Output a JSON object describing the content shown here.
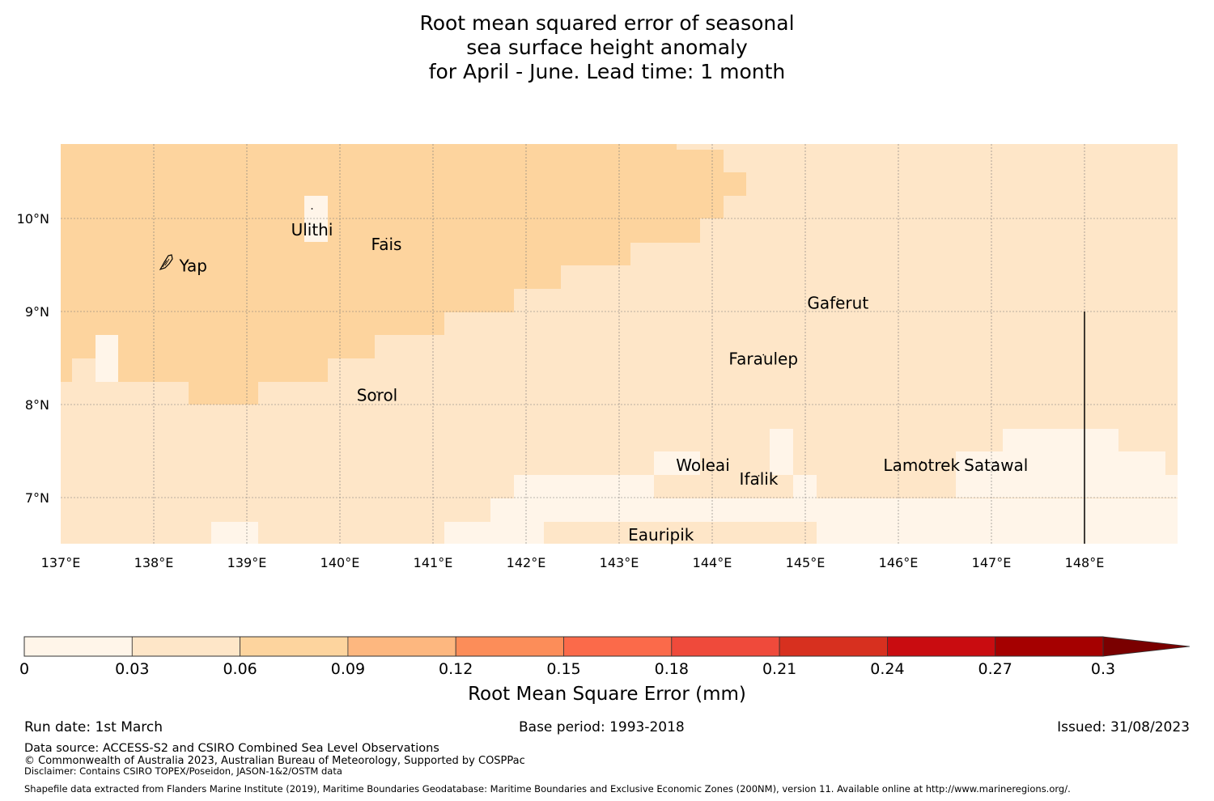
{
  "title": {
    "line1": "Root mean squared error of seasonal",
    "line2": "sea surface height anomaly",
    "line3": "for April - June. Lead time: 1 month"
  },
  "map": {
    "lon_range": [
      137,
      149
    ],
    "lat_range": [
      6.5,
      10.8
    ],
    "x_tick_labels": [
      "137°E",
      "138°E",
      "139°E",
      "140°E",
      "141°E",
      "142°E",
      "143°E",
      "144°E",
      "145°E",
      "146°E",
      "147°E",
      "148°E"
    ],
    "y_tick_labels": [
      "10°N",
      "9°N",
      "8°N",
      "7°N"
    ],
    "eez_boundary_longitude": 148,
    "places": [
      {
        "name": "Ulithi",
        "lon": 139.7,
        "lat": 10.0
      },
      {
        "name": "Fais",
        "lon": 140.5,
        "lat": 9.75
      },
      {
        "name": "Yap",
        "lon": 138.1,
        "lat": 9.5
      },
      {
        "name": "Gaferut",
        "lon": 145.35,
        "lat": 9.1
      },
      {
        "name": "Faraulep",
        "lon": 144.55,
        "lat": 8.5
      },
      {
        "name": "Sorol",
        "lon": 140.4,
        "lat": 8.1
      },
      {
        "name": "Woleai",
        "lon": 143.9,
        "lat": 7.35
      },
      {
        "name": "Ifalik",
        "lon": 144.5,
        "lat": 7.2
      },
      {
        "name": "Lamotrek",
        "lon": 146.25,
        "lat": 7.35
      },
      {
        "name": "Satawal",
        "lon": 147.05,
        "lat": 7.35
      },
      {
        "name": "Eauripik",
        "lon": 143.45,
        "lat": 6.6
      }
    ],
    "colors": {
      "band_0_003": "#fff5e9",
      "band_003_006": "#fee6c8",
      "band_006_009": "#fdd49e",
      "grid": "#777777"
    }
  },
  "colorbar": {
    "label": "Root Mean Square Error (mm)",
    "ticks": [
      "0",
      "0.03",
      "0.06",
      "0.09",
      "0.12",
      "0.15",
      "0.18",
      "0.21",
      "0.24",
      "0.27",
      "0.3"
    ],
    "colors": [
      "#fff5e9",
      "#fee6c8",
      "#fdd49e",
      "#fdb77f",
      "#fc8d59",
      "#fb6a4a",
      "#ef4a3b",
      "#d7301f",
      "#c90c10",
      "#a50000",
      "#7a0000"
    ]
  },
  "footer": {
    "run_date": "Run date: 1st March",
    "base_period": "Base period: 1993-2018",
    "issued": "Issued: 31/08/2023",
    "data_source": "Data source: ACCESS-S2 and CSIRO Combined Sea Level Observations",
    "copyright": "© Commonwealth of Australia 2023, Australian Bureau of Meteorology, Supported by COSPPac",
    "disclaimer": "Disclaimer: Contains CSIRO TOPEX/Poseidon, JASON-1&2/OSTM data",
    "shapefile": "Shapefile data extracted from Flanders Marine Institute (2019), Maritime Boundaries Geodatabase: Maritime Boundaries and Exclusive Economic Zones (200NM), version 11. Available online at http://www.marineregions.org/."
  }
}
